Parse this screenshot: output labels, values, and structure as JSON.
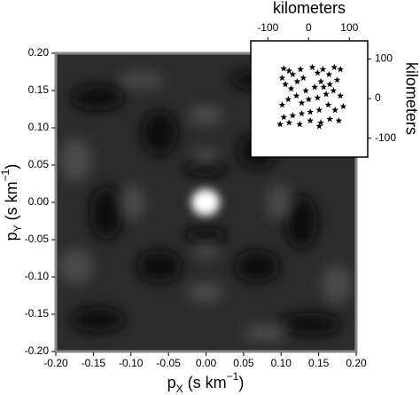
{
  "chart_data": [
    {
      "type": "heatmap",
      "colormap": "gray",
      "xlabel_parts": [
        "p",
        "X",
        " (s km",
        "−1",
        ")"
      ],
      "ylabel_parts": [
        "p",
        "Y",
        " (s km",
        "−1",
        ")"
      ],
      "xlim": [
        -0.2,
        0.2
      ],
      "ylim": [
        -0.2,
        0.2
      ],
      "xticks": [
        {
          "value": -0.2,
          "label": "-0.20"
        },
        -0.15,
        {
          "value": -0.1,
          "label": "-0.10"
        },
        -0.05,
        {
          "value": 0,
          "label": "0.00"
        },
        0.05,
        {
          "value": 0.1,
          "label": "0.10"
        },
        0.15,
        {
          "value": 0.2,
          "label": "0.20"
        }
      ],
      "yticks": [
        {
          "value": -0.2,
          "label": "-0.20"
        },
        -0.15,
        {
          "value": -0.1,
          "label": "-0.10"
        },
        -0.05,
        {
          "value": 0,
          "label": "0.00"
        },
        0.05,
        {
          "value": 0.1,
          "label": "0.10"
        },
        0.15,
        {
          "value": 0.2,
          "label": "0.20"
        }
      ]
    },
    {
      "type": "scatter",
      "marker": "star",
      "color": "#000000",
      "xlabel": "kilometers",
      "ylabel": "kilometers",
      "xlim": [
        -142,
        145
      ],
      "ylim": [
        -148,
        146
      ],
      "xticks": [
        -100,
        0,
        100
      ],
      "yticks": [
        -100,
        0,
        100
      ],
      "x": [
        -61,
        -48,
        -65,
        -39,
        -57,
        -28,
        -43,
        -20,
        -13,
        9,
        22,
        35,
        50,
        63,
        78,
        70,
        52,
        30,
        15,
        -7,
        -30,
        -50,
        -65,
        -17,
        0,
        22,
        43,
        61,
        78,
        85,
        65,
        48,
        26,
        4,
        -17,
        -39,
        -61,
        -70,
        -48,
        -22,
        4,
        30,
        52,
        26,
        74,
        37
      ],
      "y": [
        76,
        70,
        52,
        61,
        36,
        43,
        25,
        74,
        52,
        79,
        65,
        74,
        61,
        79,
        74,
        47,
        36,
        43,
        29,
        20,
        7,
        -2,
        -16,
        -11,
        -2,
        2,
        11,
        20,
        7,
        -20,
        -29,
        -16,
        -29,
        -34,
        -38,
        -43,
        -47,
        -65,
        -61,
        -65,
        -56,
        -61,
        -52,
        -70,
        -56,
        29
      ]
    }
  ]
}
